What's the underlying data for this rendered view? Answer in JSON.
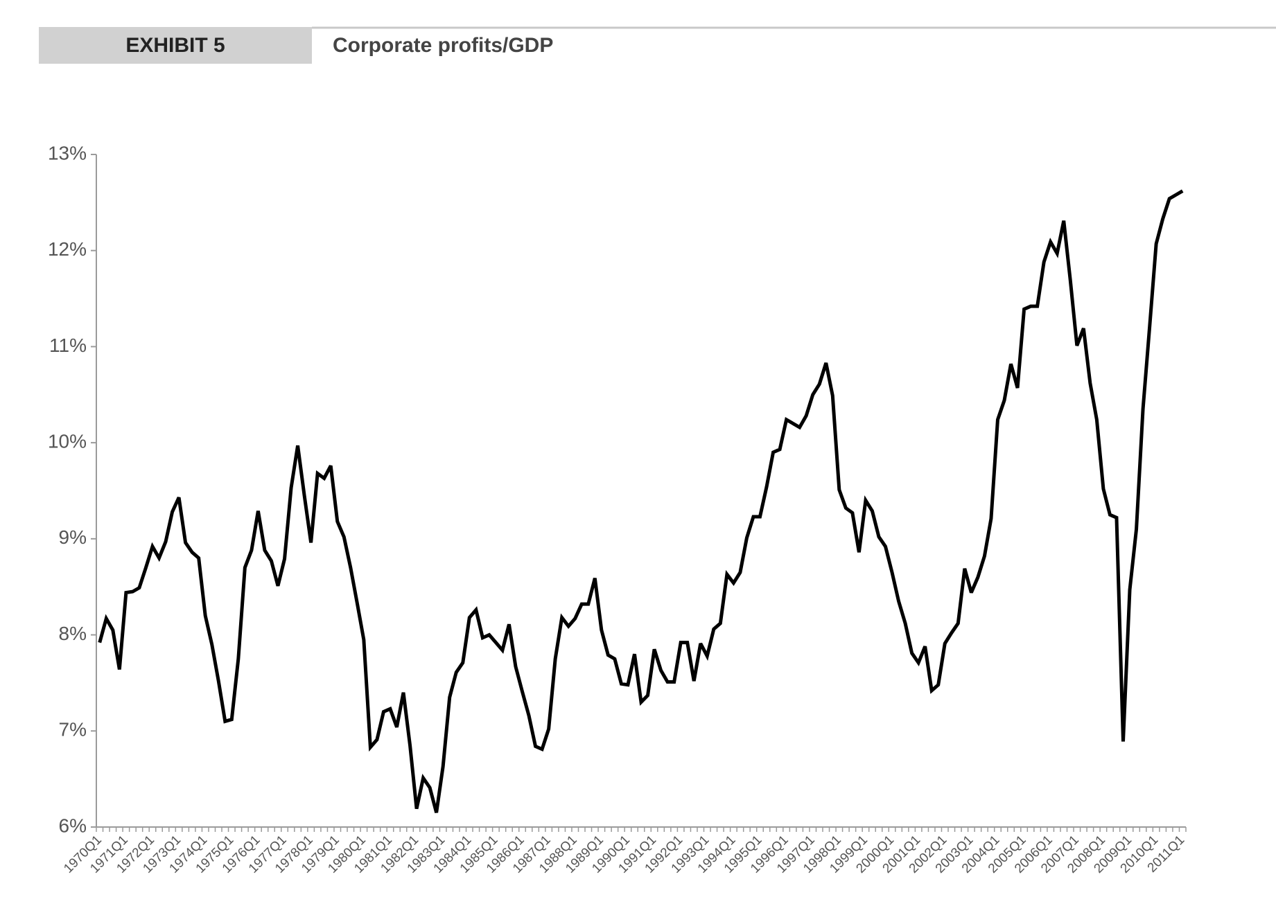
{
  "chart_data": {
    "type": "line",
    "exhibit": "EXHIBIT 5",
    "title": "Corporate profits/GDP",
    "color": "#000000",
    "categories": [
      "1970Q1",
      null,
      null,
      null,
      "1971Q1",
      null,
      null,
      null,
      "1972Q1",
      null,
      null,
      null,
      "1973Q1",
      null,
      null,
      null,
      "1974Q1",
      null,
      null,
      null,
      "1975Q1",
      null,
      null,
      null,
      "1976Q1",
      null,
      null,
      null,
      "1977Q1",
      null,
      null,
      null,
      "1978Q1",
      null,
      null,
      null,
      "1979Q1",
      null,
      null,
      null,
      "1980Q1",
      null,
      null,
      null,
      "1981Q1",
      null,
      null,
      null,
      "1982Q1",
      null,
      null,
      null,
      "1983Q1",
      null,
      null,
      null,
      "1984Q1",
      null,
      null,
      null,
      "1985Q1",
      null,
      null,
      null,
      "1986Q1",
      null,
      null,
      null,
      "1987Q1",
      null,
      null,
      null,
      "1988Q1",
      null,
      null,
      null,
      "1989Q1",
      null,
      null,
      null,
      "1990Q1",
      null,
      null,
      null,
      "1991Q1",
      null,
      null,
      null,
      "1992Q1",
      null,
      null,
      null,
      "1993Q1",
      null,
      null,
      null,
      "1994Q1",
      null,
      null,
      null,
      "1995Q1",
      null,
      null,
      null,
      "1996Q1",
      null,
      null,
      null,
      "1997Q1",
      null,
      null,
      null,
      "1998Q1",
      null,
      null,
      null,
      "1999Q1",
      null,
      null,
      null,
      "2000Q1",
      null,
      null,
      null,
      "2001Q1",
      null,
      null,
      null,
      "2002Q1",
      null,
      null,
      null,
      "2003Q1",
      null,
      null,
      null,
      "2004Q1",
      null,
      null,
      null,
      "2005Q1",
      null,
      null,
      null,
      "2006Q1",
      null,
      null,
      null,
      "2007Q1",
      null,
      null,
      null,
      "2008Q1",
      null,
      null,
      null,
      "2009Q1",
      null,
      null,
      null,
      "2010Q1",
      null,
      null,
      null,
      "2011Q1"
    ],
    "values": [
      7.92,
      8.17,
      8.05,
      7.64,
      8.44,
      8.45,
      8.49,
      8.7,
      8.92,
      8.8,
      8.97,
      9.28,
      9.43,
      8.96,
      8.86,
      8.8,
      8.2,
      7.9,
      7.52,
      7.1,
      7.12,
      7.75,
      8.7,
      8.88,
      9.29,
      8.88,
      8.77,
      8.51,
      8.79,
      9.53,
      9.97,
      9.45,
      8.96,
      9.68,
      9.63,
      9.76,
      9.18,
      9.02,
      8.7,
      8.33,
      7.95,
      6.83,
      6.91,
      7.2,
      7.23,
      7.04,
      7.4,
      6.85,
      6.19,
      6.51,
      6.41,
      6.15,
      6.63,
      7.35,
      7.61,
      7.71,
      8.18,
      8.26,
      7.97,
      8.0,
      7.92,
      7.84,
      8.11,
      7.67,
      7.41,
      7.16,
      6.84,
      6.81,
      7.02,
      7.75,
      8.18,
      8.09,
      8.17,
      8.32,
      8.32,
      8.59,
      8.05,
      7.79,
      7.75,
      7.49,
      7.48,
      7.8,
      7.3,
      7.37,
      7.85,
      7.63,
      7.51,
      7.51,
      7.92,
      7.92,
      7.52,
      7.91,
      7.78,
      8.06,
      8.12,
      8.63,
      8.54,
      8.65,
      9.01,
      9.23,
      9.23,
      9.54,
      9.9,
      9.93,
      10.24,
      10.2,
      10.16,
      10.28,
      10.5,
      10.61,
      10.83,
      10.49,
      9.51,
      9.32,
      9.27,
      8.86,
      9.4,
      9.29,
      9.02,
      8.92,
      8.65,
      8.35,
      8.12,
      7.81,
      7.71,
      7.88,
      7.42,
      7.48,
      7.91,
      8.02,
      8.12,
      8.69,
      8.44,
      8.6,
      8.82,
      9.21,
      10.24,
      10.44,
      10.82,
      10.57,
      11.39,
      11.42,
      11.42,
      11.88,
      12.09,
      11.97,
      12.31,
      11.69,
      11.01,
      11.19,
      10.62,
      10.24,
      9.52,
      9.25,
      9.22,
      6.89,
      8.47,
      9.1,
      10.35,
      11.2,
      12.07,
      12.33,
      12.54,
      12.58,
      12.62
    ],
    "ylim": [
      6,
      13
    ],
    "yticks": [
      {
        "value": 6,
        "label": "6%"
      },
      {
        "value": 7,
        "label": "7%"
      },
      {
        "value": 8,
        "label": "8%"
      },
      {
        "value": 9,
        "label": "9%"
      },
      {
        "value": 10,
        "label": "10%"
      },
      {
        "value": 11,
        "label": "11%"
      },
      {
        "value": 12,
        "label": "12%"
      },
      {
        "value": 13,
        "label": "13%"
      }
    ],
    "grid": false
  }
}
